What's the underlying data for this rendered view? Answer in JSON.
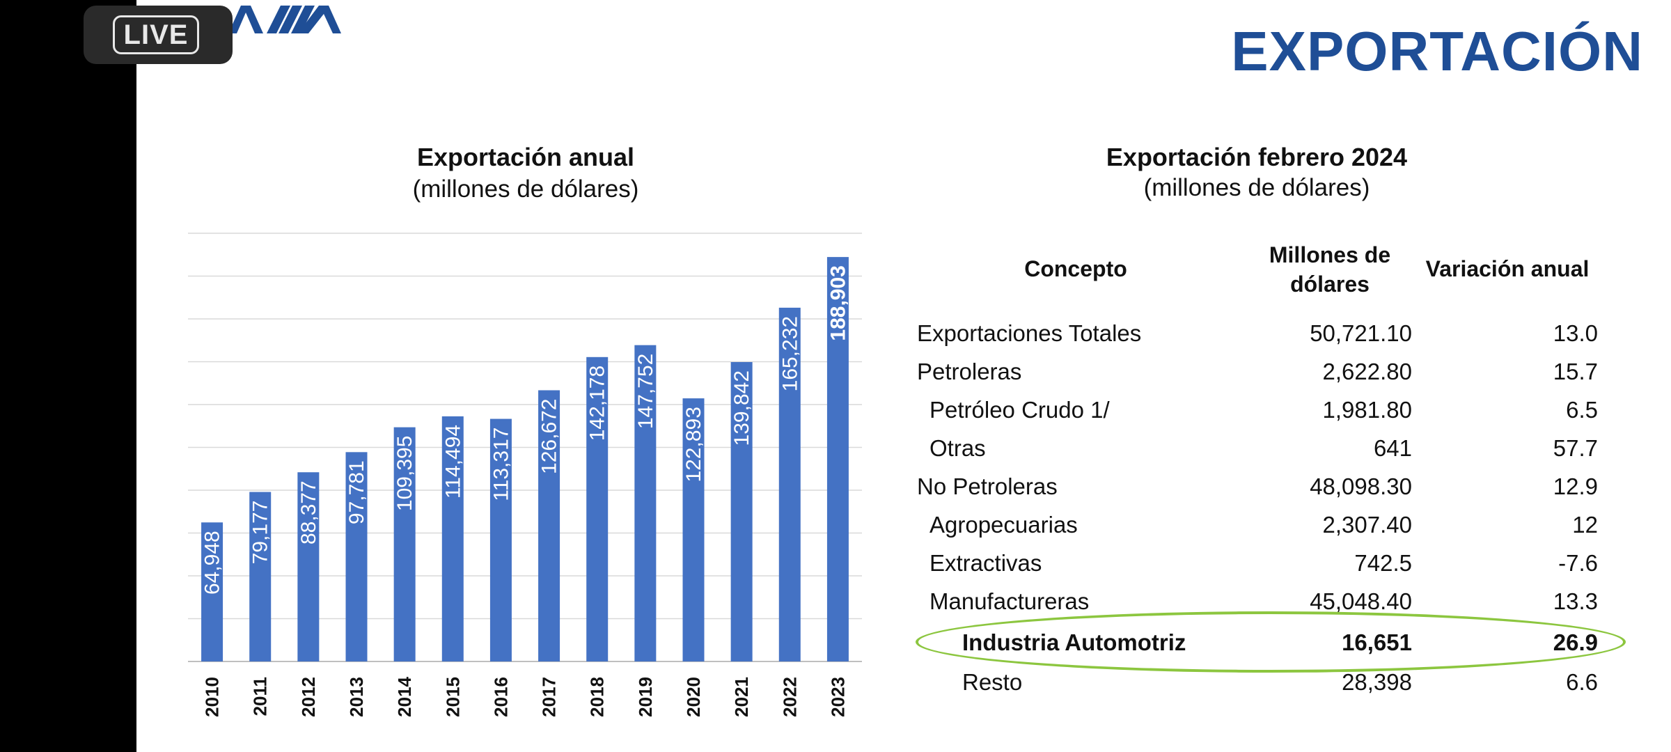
{
  "overlay": {
    "live_label": "LIVE"
  },
  "slide": {
    "logo_text": "AMIA",
    "title": "EXPORTACIÓN",
    "colors": {
      "bar": "#4472c4",
      "title": "#1f4e96",
      "highlight": "#8cc63f"
    }
  },
  "chart_data": {
    "type": "bar",
    "title": "Exportación anual",
    "subtitle": "(millones de dólares)",
    "categories": [
      "2010",
      "2011",
      "2012",
      "2013",
      "2014",
      "2015",
      "2016",
      "2017",
      "2018",
      "2019",
      "2020",
      "2021",
      "2022",
      "2023"
    ],
    "values": [
      64948,
      79177,
      88377,
      97781,
      109395,
      114494,
      113317,
      126672,
      142178,
      147752,
      122893,
      139842,
      165232,
      188903
    ],
    "value_labels": [
      "64,948",
      "79,177",
      "88,377",
      "97,781",
      "109,395",
      "114,494",
      "113,317",
      "126,672",
      "142,178",
      "147,752",
      "122,893",
      "139,842",
      "165,232",
      "188,903"
    ],
    "ylim": [
      0,
      200000
    ],
    "grid": true,
    "xlabel": "",
    "ylabel": ""
  },
  "table": {
    "title": "Exportación febrero 2024",
    "subtitle": "(millones de dólares)",
    "headers": {
      "concept": "Concepto",
      "value_line1": "Millones de",
      "value_line2": "dólares",
      "variation": "Variación anual"
    },
    "rows": [
      {
        "concept": "Exportaciones Totales",
        "value": "50,721.10",
        "variation": "13.0"
      },
      {
        "concept": "Petroleras",
        "value": "2,622.80",
        "variation": "15.7"
      },
      {
        "concept": "Petróleo Crudo 1/",
        "value": "1,981.80",
        "variation": "6.5"
      },
      {
        "concept": "Otras",
        "value": "641",
        "variation": "57.7"
      },
      {
        "concept": "No Petroleras",
        "value": "48,098.30",
        "variation": "12.9"
      },
      {
        "concept": "Agropecuarias",
        "value": "2,307.40",
        "variation": "12"
      },
      {
        "concept": "Extractivas",
        "value": "742.5",
        "variation": "-7.6"
      },
      {
        "concept": "Manufactureras",
        "value": "45,048.40",
        "variation": "13.3"
      },
      {
        "concept": "Industria Automotriz",
        "value": "16,651",
        "variation": "26.9"
      },
      {
        "concept": "Resto",
        "value": "28,398",
        "variation": "6.6"
      }
    ]
  }
}
